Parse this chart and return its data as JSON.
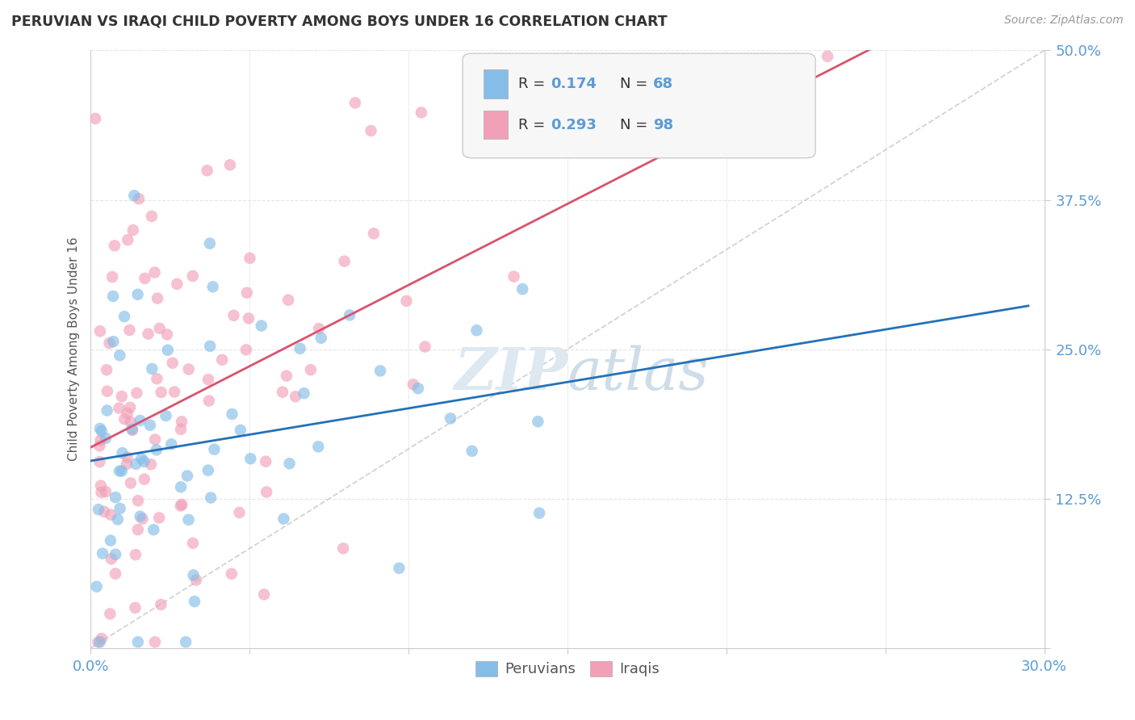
{
  "title": "PERUVIAN VS IRAQI CHILD POVERTY AMONG BOYS UNDER 16 CORRELATION CHART",
  "source": "Source: ZipAtlas.com",
  "ylabel": "Child Poverty Among Boys Under 16",
  "xlim": [
    0.0,
    0.3
  ],
  "ylim": [
    0.0,
    0.5
  ],
  "xticks": [
    0.0,
    0.05,
    0.1,
    0.15,
    0.2,
    0.25,
    0.3
  ],
  "xticklabels": [
    "0.0%",
    "",
    "",
    "",
    "",
    "",
    "30.0%"
  ],
  "yticks": [
    0.0,
    0.125,
    0.25,
    0.375,
    0.5
  ],
  "yticklabels": [
    "",
    "12.5%",
    "25.0%",
    "37.5%",
    "50.0%"
  ],
  "peruvian_R": 0.174,
  "peruvian_N": 68,
  "iraqi_R": 0.293,
  "iraqi_N": 98,
  "blue_color": "#85bde8",
  "pink_color": "#f2a0b8",
  "blue_line_color": "#2471b8",
  "pink_line_color": "#d9536e",
  "ref_line_color": "#c8c8c8",
  "background_color": "#ffffff",
  "grid_color": "#e5e5e5",
  "title_color": "#333333",
  "axis_label_color": "#555555",
  "tick_color": "#5b9bd5",
  "watermark_color": "#dde8f0",
  "legend_box_color": "#f7f7f7",
  "legend_border_color": "#cccccc"
}
